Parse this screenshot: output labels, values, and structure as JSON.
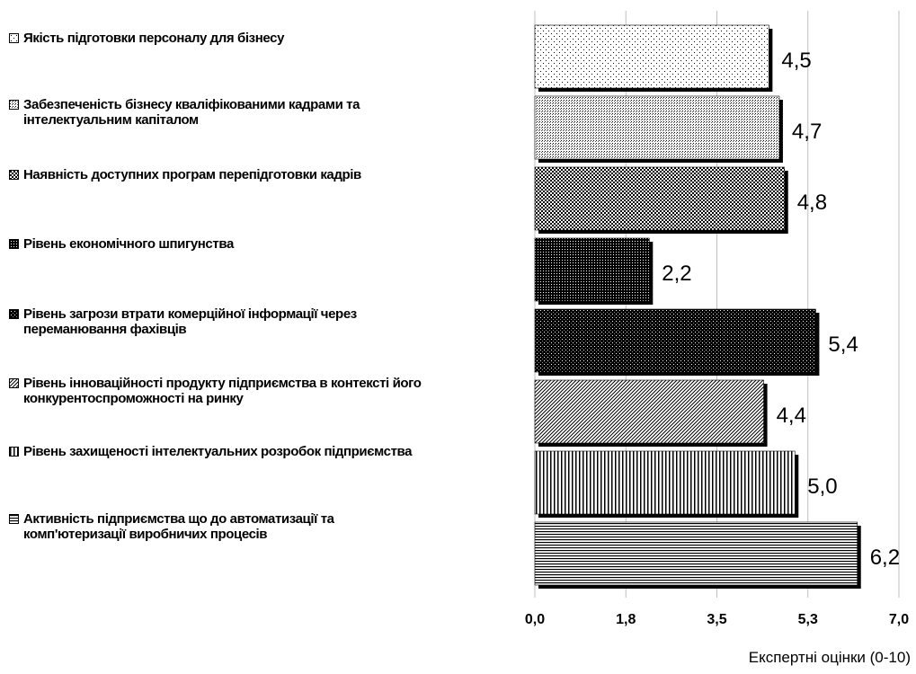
{
  "chart_data": {
    "type": "bar",
    "orientation": "horizontal",
    "xlabel": "Експертні оцінки (0-10)",
    "xlim": [
      0,
      7
    ],
    "x_tick_labels": [
      "0,0",
      "1,8",
      "3,5",
      "5,3",
      "7,0"
    ],
    "grid": "vertical",
    "legend_position": "left",
    "categories": [
      "Якість підготовки персоналу для бізнесу",
      "Забезпеченість бізнесу кваліфікованими кадрами та інтелектуальним капіталом",
      "Наявність доступних програм перепідготовки кадрів",
      "Рівень економічного шпигунства",
      "Рівень загрози втрати комерційної інформації через переманювання фахівців",
      "Рівень інноваційності продукту підприємства в контексті його конкурентоспроможності на ринку",
      "Рівень захищеності інтелектуальних розробок підприємства",
      "Активність підприємства що до автоматизації та комп'ютеризації виробничих процесів"
    ],
    "legend_lines": [
      [
        "Якість підготовки персоналу для бізнесу"
      ],
      [
        "Забезпеченість бізнесу кваліфікованими кадрами та",
        "інтелектуальним капіталом"
      ],
      [
        "Наявність доступних програм перепідготовки кадрів"
      ],
      [
        "Рівень економічного шпигунства"
      ],
      [
        "Рівень загрози втрати комерційної інформації через",
        "переманювання фахівців"
      ],
      [
        "Рівень інноваційності продукту підприємства в контексті його",
        "конкурентоспроможності на ринку"
      ],
      [
        "Рівень захищеності інтелектуальних розробок підприємства"
      ],
      [
        "Активність підприємства що до автоматизації та",
        "комп'ютеризації виробничих процесів"
      ]
    ],
    "values": [
      4.5,
      4.7,
      4.8,
      2.2,
      5.4,
      4.4,
      5.0,
      6.2
    ],
    "value_labels": [
      "4,5",
      "4,7",
      "4,8",
      "2,2",
      "5,4",
      "4,4",
      "5,0",
      "6,2"
    ],
    "patterns": [
      "sparse-dots",
      "fine-dots",
      "medium-dots",
      "dense-grid",
      "dark-dots",
      "diagonal-lines",
      "vertical-lines",
      "horizontal-lines"
    ],
    "colors": {
      "bar_edge": "#000000",
      "grid": "#bfbfbf"
    }
  }
}
